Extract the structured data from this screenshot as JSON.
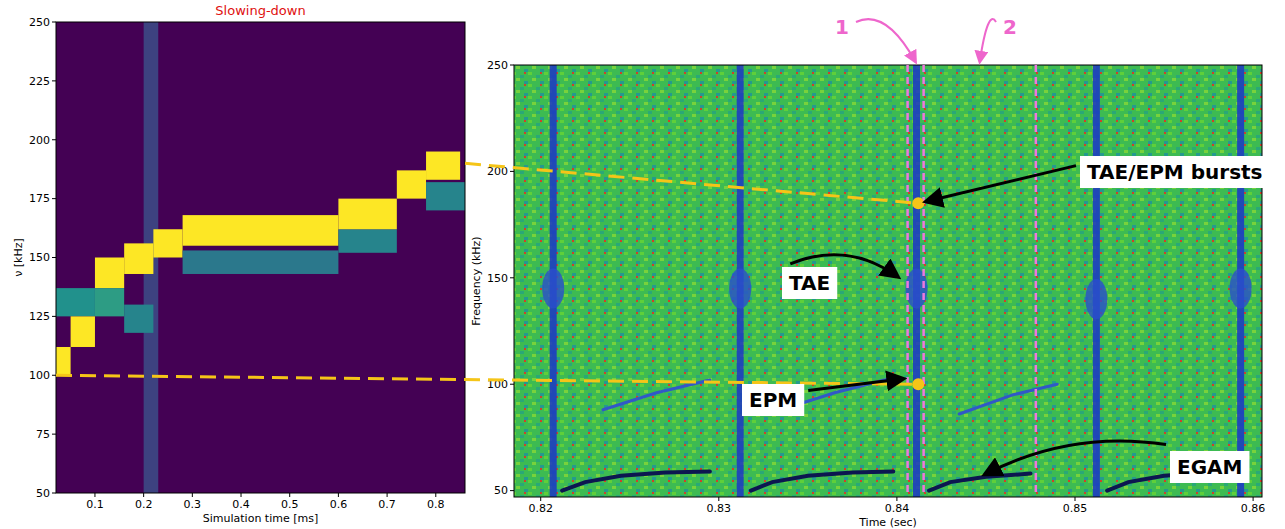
{
  "chart_data": [
    {
      "type": "heatmap",
      "title": "Slowing-down",
      "xlabel": "Simulation time [ms]",
      "ylabel": "ν [kHz]",
      "xlim": [
        0.02,
        0.86
      ],
      "ylim": [
        50,
        250
      ],
      "xticks": [
        0.1,
        0.2,
        0.3,
        0.4,
        0.5,
        0.6,
        0.7,
        0.8
      ],
      "yticks": [
        50,
        75,
        100,
        125,
        150,
        175,
        200,
        225,
        250
      ],
      "zlim": [
        0,
        1
      ],
      "cells": [
        {
          "t": [
            0.2,
            0.23
          ],
          "f": [
            50,
            250
          ],
          "v": 0.2
        },
        {
          "t": [
            0.02,
            0.05
          ],
          "f": [
            100,
            112
          ],
          "v": 1
        },
        {
          "t": [
            0.02,
            0.1
          ],
          "f": [
            125,
            137
          ],
          "v": 0.5
        },
        {
          "t": [
            0.05,
            0.1
          ],
          "f": [
            112,
            125
          ],
          "v": 1
        },
        {
          "t": [
            0.1,
            0.16
          ],
          "f": [
            137,
            150
          ],
          "v": 1
        },
        {
          "t": [
            0.1,
            0.16
          ],
          "f": [
            125,
            137
          ],
          "v": 0.55
        },
        {
          "t": [
            0.16,
            0.22
          ],
          "f": [
            143,
            156
          ],
          "v": 1
        },
        {
          "t": [
            0.16,
            0.22
          ],
          "f": [
            118,
            130
          ],
          "v": 0.45
        },
        {
          "t": [
            0.22,
            0.28
          ],
          "f": [
            150,
            162
          ],
          "v": 1
        },
        {
          "t": [
            0.28,
            0.6
          ],
          "f": [
            143,
            153
          ],
          "v": 0.4
        },
        {
          "t": [
            0.28,
            0.6
          ],
          "f": [
            155,
            168
          ],
          "v": 1
        },
        {
          "t": [
            0.6,
            0.72
          ],
          "f": [
            152,
            162
          ],
          "v": 0.45
        },
        {
          "t": [
            0.6,
            0.72
          ],
          "f": [
            162,
            175
          ],
          "v": 1
        },
        {
          "t": [
            0.72,
            0.78
          ],
          "f": [
            175,
            187
          ],
          "v": 1
        },
        {
          "t": [
            0.78,
            0.86
          ],
          "f": [
            170,
            182
          ],
          "v": 0.45
        },
        {
          "t": [
            0.78,
            0.85
          ],
          "f": [
            183,
            195
          ],
          "v": 1
        }
      ]
    },
    {
      "type": "spectrogram",
      "xlabel": "Time (sec)",
      "ylabel": "Frequency (kHz)",
      "xlim": [
        0.8185,
        0.8605
      ],
      "ylim": [
        47,
        250
      ],
      "xticks": [
        0.82,
        0.83,
        0.84,
        0.85,
        0.86
      ],
      "yticks": [
        50,
        100,
        150,
        200,
        250
      ],
      "bursts": [
        0.8207,
        0.8312,
        0.8411,
        0.8512,
        0.8593
      ],
      "tae": {
        "x": [
          0.8207,
          0.8312,
          0.8411,
          0.8512,
          0.8593
        ],
        "values": [
          145,
          145,
          145,
          140,
          145
        ]
      },
      "epm": {
        "x": [
          0.8235,
          0.8265,
          0.8295,
          0.83,
          0.8335,
          0.8365,
          0.8398,
          0.8405,
          0.8435,
          0.8465,
          0.849
        ],
        "values": [
          88,
          96,
          102,
          null,
          88,
          96,
          103,
          null,
          86,
          95,
          100
        ]
      },
      "egam": {
        "x": [
          0.8212,
          0.8225,
          0.8245,
          0.827,
          0.8295,
          0.83,
          0.8318,
          0.833,
          0.835,
          0.8375,
          0.8398,
          0.8405,
          0.8418,
          0.843,
          0.845,
          0.8475,
          0.849,
          0.8518,
          0.853,
          0.855,
          0.8575,
          0.859
        ],
        "values": [
          50,
          54,
          57,
          58.5,
          59,
          null,
          50,
          54,
          57,
          58.5,
          59,
          null,
          50,
          54,
          56.5,
          58,
          null,
          50,
          54,
          57,
          58.5,
          59
        ]
      },
      "intervals": [
        {
          "label": "1",
          "range": [
            0.8406,
            0.8415
          ]
        },
        {
          "label": "2",
          "range": [
            0.8415,
            0.8478
          ]
        }
      ],
      "annotations": [
        {
          "text": "TAE/EPM bursts",
          "x": 0.8412,
          "y": 185
        },
        {
          "text": "TAE",
          "x": 0.8405,
          "y": 150
        },
        {
          "text": "EPM",
          "x": 0.8408,
          "y": 103
        },
        {
          "text": "EGAM",
          "x": 0.8445,
          "y": 57
        }
      ],
      "links": [
        {
          "left_time": 0.86,
          "left_freq": 190,
          "time": 0.8412,
          "freq": 185
        },
        {
          "left_time": 0.02,
          "left_freq": 100,
          "time": 0.8412,
          "freq": 100
        }
      ]
    }
  ]
}
